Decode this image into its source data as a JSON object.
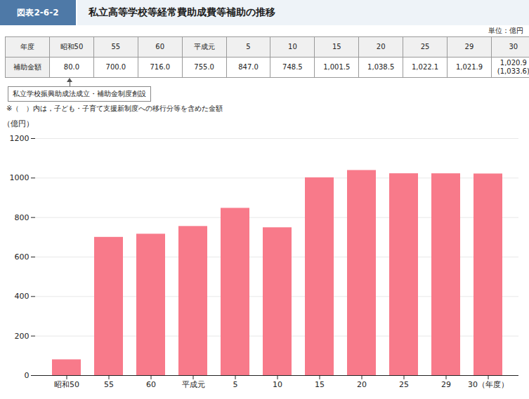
{
  "chart_data": {
    "type": "bar",
    "title": "私立高等学校等経常費助成費等補助の推移",
    "figure_number": "図表2-6-2",
    "unit_label": "単位：億円",
    "table": [
      [
        "年度",
        "昭和50",
        "55",
        "60",
        "平成元",
        "5",
        "10",
        "15",
        "20",
        "25",
        "29",
        "30"
      ],
      [
        "補助金額",
        "80.0",
        "700.0",
        "716.0",
        "755.0",
        "847.0",
        "748.5",
        "1,001.5",
        "1,038.5",
        "1,022.1",
        "1,021.9",
        "1,020.9\n(1,033.6)"
      ]
    ],
    "annotation": "私立学校振興助成法成立・補助金制度創設",
    "note": "※（　）内は，子ども・子育て支援新制度への移行分等を含めた金額",
    "categories": [
      "昭和50",
      "55",
      "60",
      "平成元",
      "5",
      "10",
      "15",
      "20",
      "25",
      "29",
      "30（年度）"
    ],
    "values": [
      80.0,
      700.0,
      716.0,
      755.0,
      847.0,
      748.5,
      1001.5,
      1038.5,
      1022.1,
      1021.9,
      1020.9
    ],
    "color": "#F87A8A",
    "ylabel": "（億円）",
    "ylim": [
      0,
      1200
    ],
    "yticks": [
      0,
      200,
      400,
      600,
      800,
      1000,
      1200
    ],
    "grid": true
  }
}
